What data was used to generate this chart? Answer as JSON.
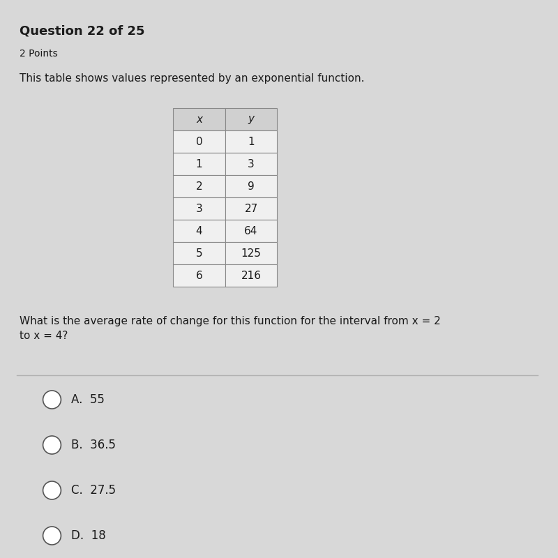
{
  "title": "Question 22 of 25",
  "subtitle": "2 Points",
  "question_text": "This table shows values represented by an exponential function.",
  "table_headers": [
    "x",
    "y"
  ],
  "table_data": [
    [
      0,
      1
    ],
    [
      1,
      3
    ],
    [
      2,
      9
    ],
    [
      3,
      27
    ],
    [
      4,
      64
    ],
    [
      5,
      125
    ],
    [
      6,
      216
    ]
  ],
  "question2": "What is the average rate of change for this function for the interval from x = 2\nto x = 4?",
  "choices": [
    {
      "label": "A.",
      "value": "55"
    },
    {
      "label": "B.",
      "value": "36.5"
    },
    {
      "label": "C.",
      "value": "27.5"
    },
    {
      "label": "D.",
      "value": "18"
    }
  ],
  "bg_color": "#d8d8d8",
  "table_header_bg": "#c8c8c8",
  "table_row_bg": "#f5f5f5",
  "text_color": "#1a1a1a",
  "divider_color": "#b0b0b0"
}
